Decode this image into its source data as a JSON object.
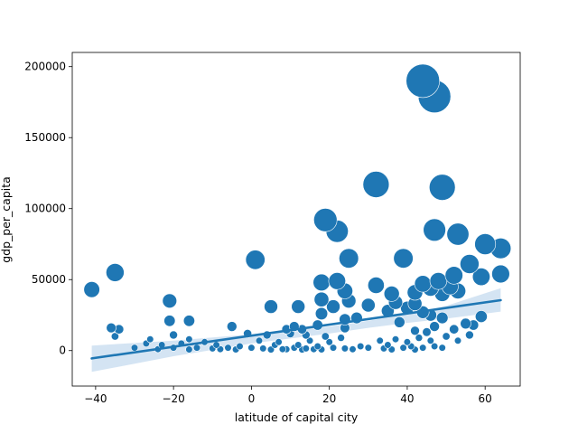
{
  "chart_data": {
    "type": "scatter",
    "title": "",
    "xlabel": "latitude of capital city",
    "ylabel": "gdp_per_capita",
    "xlim": [
      -46,
      69
    ],
    "ylim": [
      -25000,
      210000
    ],
    "xticks": [
      -40,
      -20,
      0,
      20,
      40,
      60
    ],
    "yticks": [
      0,
      50000,
      100000,
      150000,
      200000
    ],
    "xtick_labels": [
      "−40",
      "−20",
      "0",
      "20",
      "40",
      "60"
    ],
    "ytick_labels": [
      "0",
      "50000",
      "100000",
      "150000",
      "200000"
    ],
    "grid": false,
    "legend": "none",
    "colors": {
      "points": "#1f77b4",
      "line": "#1f77b4",
      "band": "#c6dbef"
    },
    "size_encoding": "marker area proportional to gdp_per_capita",
    "points": [
      {
        "x": 44,
        "y": 190000
      },
      {
        "x": 47,
        "y": 179000
      },
      {
        "x": 32,
        "y": 117000
      },
      {
        "x": 49,
        "y": 115000
      },
      {
        "x": 19,
        "y": 92000
      },
      {
        "x": 22,
        "y": 84000
      },
      {
        "x": 47,
        "y": 85000
      },
      {
        "x": 53,
        "y": 82000
      },
      {
        "x": 60,
        "y": 75000
      },
      {
        "x": 64,
        "y": 72000
      },
      {
        "x": 1,
        "y": 64000
      },
      {
        "x": 25,
        "y": 65000
      },
      {
        "x": 39,
        "y": 65000
      },
      {
        "x": 56,
        "y": 61000
      },
      {
        "x": -35,
        "y": 55000
      },
      {
        "x": 64,
        "y": 54000
      },
      {
        "x": 52,
        "y": 53000
      },
      {
        "x": 59,
        "y": 52000
      },
      {
        "x": -41,
        "y": 43000
      },
      {
        "x": 18,
        "y": 48000
      },
      {
        "x": 22,
        "y": 49000
      },
      {
        "x": 32,
        "y": 46000
      },
      {
        "x": 44,
        "y": 47000
      },
      {
        "x": 48,
        "y": 49000
      },
      {
        "x": 51,
        "y": 45000
      },
      {
        "x": 46,
        "y": 44000
      },
      {
        "x": 24,
        "y": 42000
      },
      {
        "x": 36,
        "y": 40000
      },
      {
        "x": 42,
        "y": 41000
      },
      {
        "x": 49,
        "y": 40000
      },
      {
        "x": 53,
        "y": 42000
      },
      {
        "x": -21,
        "y": 35000
      },
      {
        "x": 18,
        "y": 36000
      },
      {
        "x": 25,
        "y": 35000
      },
      {
        "x": 37,
        "y": 34000
      },
      {
        "x": 42,
        "y": 33000
      },
      {
        "x": 5,
        "y": 31000
      },
      {
        "x": 12,
        "y": 31000
      },
      {
        "x": 21,
        "y": 31000
      },
      {
        "x": 30,
        "y": 32000
      },
      {
        "x": 40,
        "y": 30000
      },
      {
        "x": 35,
        "y": 28000
      },
      {
        "x": 44,
        "y": 27000
      },
      {
        "x": 18,
        "y": 26000
      },
      {
        "x": 46,
        "y": 25000
      },
      {
        "x": 27,
        "y": 23000
      },
      {
        "x": 49,
        "y": 23000
      },
      {
        "x": 59,
        "y": 24000
      },
      {
        "x": 24,
        "y": 22000
      },
      {
        "x": -21,
        "y": 21000
      },
      {
        "x": -16,
        "y": 21000
      },
      {
        "x": 38,
        "y": 20000
      },
      {
        "x": 55,
        "y": 19000
      },
      {
        "x": 57,
        "y": 18000
      },
      {
        "x": 47,
        "y": 17000
      },
      {
        "x": -36,
        "y": 16000
      },
      {
        "x": -34,
        "y": 15000
      },
      {
        "x": -5,
        "y": 17000
      },
      {
        "x": 11,
        "y": 17000
      },
      {
        "x": 13,
        "y": 15000
      },
      {
        "x": 9,
        "y": 15000
      },
      {
        "x": 17,
        "y": 18000
      },
      {
        "x": 24,
        "y": 16000
      },
      {
        "x": 42,
        "y": 14000
      },
      {
        "x": 45,
        "y": 13000
      },
      {
        "x": 52,
        "y": 15000
      },
      {
        "x": -35,
        "y": 10000
      },
      {
        "x": -20,
        "y": 11000
      },
      {
        "x": -1,
        "y": 12000
      },
      {
        "x": 4,
        "y": 11000
      },
      {
        "x": 10,
        "y": 12000
      },
      {
        "x": 14,
        "y": 11000
      },
      {
        "x": 19,
        "y": 10000
      },
      {
        "x": 23,
        "y": 9000
      },
      {
        "x": 37,
        "y": 8000
      },
      {
        "x": 43,
        "y": 9000
      },
      {
        "x": 50,
        "y": 10000
      },
      {
        "x": 56,
        "y": 11000
      },
      {
        "x": -26,
        "y": 8000
      },
      {
        "x": -16,
        "y": 8000
      },
      {
        "x": -12,
        "y": 6000
      },
      {
        "x": 2,
        "y": 7000
      },
      {
        "x": 7,
        "y": 6000
      },
      {
        "x": 15,
        "y": 7000
      },
      {
        "x": 20,
        "y": 6000
      },
      {
        "x": 33,
        "y": 7000
      },
      {
        "x": 40,
        "y": 6000
      },
      {
        "x": 46,
        "y": 7000
      },
      {
        "x": 53,
        "y": 7000
      },
      {
        "x": -27,
        "y": 5000
      },
      {
        "x": -23,
        "y": 4000
      },
      {
        "x": -18,
        "y": 5000
      },
      {
        "x": -9,
        "y": 4000
      },
      {
        "x": -3,
        "y": 3000
      },
      {
        "x": 6,
        "y": 4000
      },
      {
        "x": 12,
        "y": 4000
      },
      {
        "x": 17,
        "y": 3000
      },
      {
        "x": 28,
        "y": 3000
      },
      {
        "x": 35,
        "y": 4000
      },
      {
        "x": 41,
        "y": 3000
      },
      {
        "x": 47,
        "y": 3000
      },
      {
        "x": -30,
        "y": 2000
      },
      {
        "x": -20,
        "y": 2000
      },
      {
        "x": -14,
        "y": 2000
      },
      {
        "x": -10,
        "y": 1500
      },
      {
        "x": -6,
        "y": 2000
      },
      {
        "x": 0,
        "y": 2000
      },
      {
        "x": 3,
        "y": 1500
      },
      {
        "x": 8,
        "y": 1000
      },
      {
        "x": 11,
        "y": 2000
      },
      {
        "x": 14,
        "y": 1500
      },
      {
        "x": 16,
        "y": 1000
      },
      {
        "x": 21,
        "y": 2000
      },
      {
        "x": 24,
        "y": 1500
      },
      {
        "x": 30,
        "y": 2000
      },
      {
        "x": 34,
        "y": 1500
      },
      {
        "x": 39,
        "y": 2000
      },
      {
        "x": 44,
        "y": 2000
      },
      {
        "x": 49,
        "y": 2000
      },
      {
        "x": -24,
        "y": 1000
      },
      {
        "x": -16,
        "y": 800
      },
      {
        "x": -8,
        "y": 1000
      },
      {
        "x": -4,
        "y": 800
      },
      {
        "x": 5,
        "y": 700
      },
      {
        "x": 9,
        "y": 900
      },
      {
        "x": 13,
        "y": 700
      },
      {
        "x": 18,
        "y": 800
      },
      {
        "x": 26,
        "y": 900
      },
      {
        "x": 36,
        "y": 800
      },
      {
        "x": 42,
        "y": 700
      }
    ],
    "regression": {
      "x": [
        -41,
        64
      ],
      "y": [
        -5500,
        35500
      ]
    },
    "confidence_band": {
      "x": [
        -41,
        -20,
        0,
        20,
        30,
        40,
        50,
        64
      ],
      "lower": [
        -15000,
        -4000,
        5000,
        12000,
        16000,
        19500,
        22500,
        27500
      ],
      "upper": [
        3500,
        7000,
        11500,
        17000,
        21000,
        25500,
        31500,
        44000
      ]
    }
  }
}
